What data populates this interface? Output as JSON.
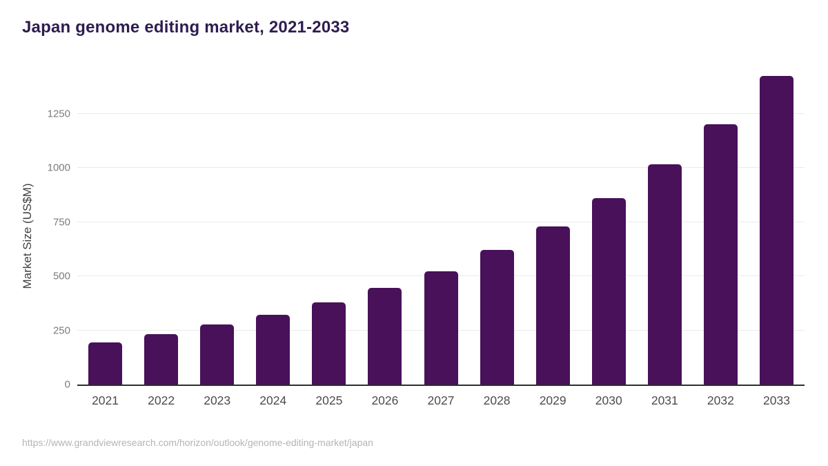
{
  "chart_data": {
    "type": "bar",
    "title": "Japan genome editing market, 2021-2033",
    "ylabel": "Market Size (US$M)",
    "xlabel": "",
    "categories": [
      "2021",
      "2022",
      "2023",
      "2024",
      "2025",
      "2026",
      "2027",
      "2028",
      "2029",
      "2030",
      "2031",
      "2032",
      "2033"
    ],
    "values": [
      195,
      234,
      276,
      323,
      380,
      447,
      523,
      620,
      730,
      860,
      1018,
      1203,
      1424
    ],
    "yticks": [
      0,
      250,
      500,
      750,
      1000,
      1250
    ],
    "ylim": [
      0,
      1450
    ],
    "grid": true,
    "legend": false,
    "colors": {
      "bar": "#481159",
      "title": "#2e1c50",
      "axis_line": "#2d2d2d",
      "gridline": "#eaeaea",
      "ytick_label": "#7b7b7b",
      "xtick_label": "#4c4c4c",
      "source_text": "#b4b4b4"
    }
  },
  "footer": {
    "source_url": "https://www.grandviewresearch.com/horizon/outlook/genome-editing-market/japan"
  }
}
